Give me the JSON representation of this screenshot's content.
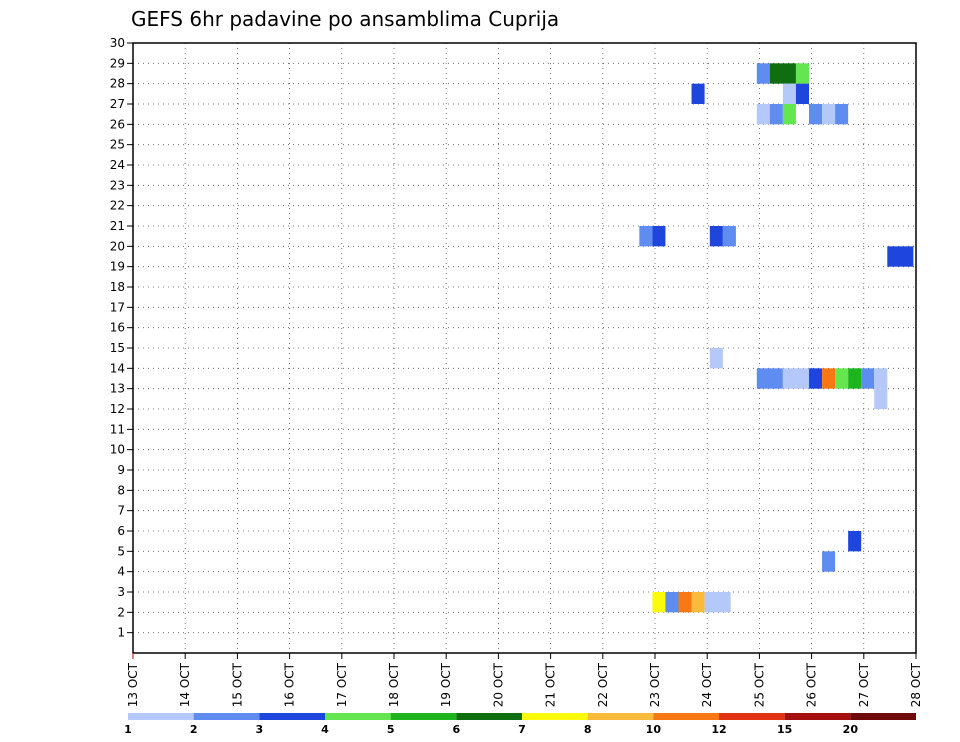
{
  "chart_data": {
    "type": "heatmap",
    "title": "GEFS 6hr padavine po ansamblima Cuprija",
    "x_tick_labels": [
      "13 OCT",
      "14 OCT",
      "15 OCT",
      "16 OCT",
      "17 OCT",
      "18 OCT",
      "19 OCT",
      "20 OCT",
      "21 OCT",
      "22 OCT",
      "23 OCT",
      "24 OCT",
      "25 OCT",
      "26 OCT",
      "27 OCT",
      "28 OCT"
    ],
    "x_range_days": [
      0,
      15
    ],
    "y_tick_labels": [
      "1",
      "2",
      "3",
      "4",
      "5",
      "6",
      "7",
      "8",
      "9",
      "10",
      "11",
      "12",
      "13",
      "14",
      "15",
      "16",
      "17",
      "18",
      "19",
      "20",
      "21",
      "22",
      "23",
      "24",
      "25",
      "26",
      "27",
      "28",
      "29",
      "30"
    ],
    "y_range": [
      0,
      30
    ],
    "grid": true,
    "colorbar": {
      "colors": [
        "#b4c8fa",
        "#5f8cf0",
        "#1e46dc",
        "#64e650",
        "#1eb41e",
        "#0f6e0f",
        "#fafa0a",
        "#faba3c",
        "#fa7814",
        "#e13214",
        "#a50f0f",
        "#6e0a0a"
      ],
      "labels": [
        "1",
        "2",
        "3",
        "4",
        "5",
        "6",
        "7",
        "8",
        "10",
        "12",
        "15",
        "20"
      ]
    },
    "cells": [
      {
        "member": 28.5,
        "x0": 11.95,
        "x1": 12.2,
        "c": 1
      },
      {
        "member": 28.5,
        "x0": 12.2,
        "x1": 12.7,
        "c": 5
      },
      {
        "member": 28.5,
        "x0": 12.7,
        "x1": 12.95,
        "c": 3
      },
      {
        "member": 27.5,
        "x0": 12.45,
        "x1": 12.7,
        "c": 0
      },
      {
        "member": 27.5,
        "x0": 12.7,
        "x1": 12.95,
        "c": 2
      },
      {
        "member": 27.5,
        "x0": 10.7,
        "x1": 10.95,
        "c": 2
      },
      {
        "member": 26.5,
        "x0": 11.95,
        "x1": 12.2,
        "c": 0
      },
      {
        "member": 26.5,
        "x0": 12.2,
        "x1": 12.45,
        "c": 1
      },
      {
        "member": 26.5,
        "x0": 12.45,
        "x1": 12.7,
        "c": 3
      },
      {
        "member": 26.5,
        "x0": 12.95,
        "x1": 13.2,
        "c": 1
      },
      {
        "member": 26.5,
        "x0": 13.2,
        "x1": 13.45,
        "c": 0
      },
      {
        "member": 26.5,
        "x0": 13.45,
        "x1": 13.7,
        "c": 1
      },
      {
        "member": 20.5,
        "x0": 9.7,
        "x1": 9.95,
        "c": 1
      },
      {
        "member": 20.5,
        "x0": 9.95,
        "x1": 10.2,
        "c": 2
      },
      {
        "member": 20.5,
        "x0": 11.05,
        "x1": 11.3,
        "c": 2
      },
      {
        "member": 20.5,
        "x0": 11.3,
        "x1": 11.55,
        "c": 1
      },
      {
        "member": 19.5,
        "x0": 14.45,
        "x1": 14.95,
        "c": 2
      },
      {
        "member": 14.5,
        "x0": 11.05,
        "x1": 11.3,
        "c": 0
      },
      {
        "member": 13.5,
        "x0": 11.95,
        "x1": 12.45,
        "c": 1
      },
      {
        "member": 13.5,
        "x0": 12.45,
        "x1": 12.95,
        "c": 0
      },
      {
        "member": 13.5,
        "x0": 12.95,
        "x1": 13.2,
        "c": 2
      },
      {
        "member": 13.5,
        "x0": 13.2,
        "x1": 13.45,
        "c": 8
      },
      {
        "member": 13.5,
        "x0": 13.45,
        "x1": 13.7,
        "c": 3
      },
      {
        "member": 13.5,
        "x0": 13.7,
        "x1": 13.95,
        "c": 4
      },
      {
        "member": 13.5,
        "x0": 13.95,
        "x1": 14.2,
        "c": 1
      },
      {
        "member": 13.5,
        "x0": 14.2,
        "x1": 14.45,
        "c": 0
      },
      {
        "member": 12.5,
        "x0": 14.2,
        "x1": 14.45,
        "c": 0
      },
      {
        "member": 5.5,
        "x0": 13.7,
        "x1": 13.95,
        "c": 2
      },
      {
        "member": 4.5,
        "x0": 13.2,
        "x1": 13.45,
        "c": 1
      },
      {
        "member": 2.5,
        "x0": 9.95,
        "x1": 10.2,
        "c": 6
      },
      {
        "member": 2.5,
        "x0": 10.2,
        "x1": 10.45,
        "c": 1
      },
      {
        "member": 2.5,
        "x0": 10.45,
        "x1": 10.7,
        "c": 8
      },
      {
        "member": 2.5,
        "x0": 10.7,
        "x1": 10.95,
        "c": 7
      },
      {
        "member": 2.5,
        "x0": 10.95,
        "x1": 11.45,
        "c": 0
      }
    ]
  }
}
